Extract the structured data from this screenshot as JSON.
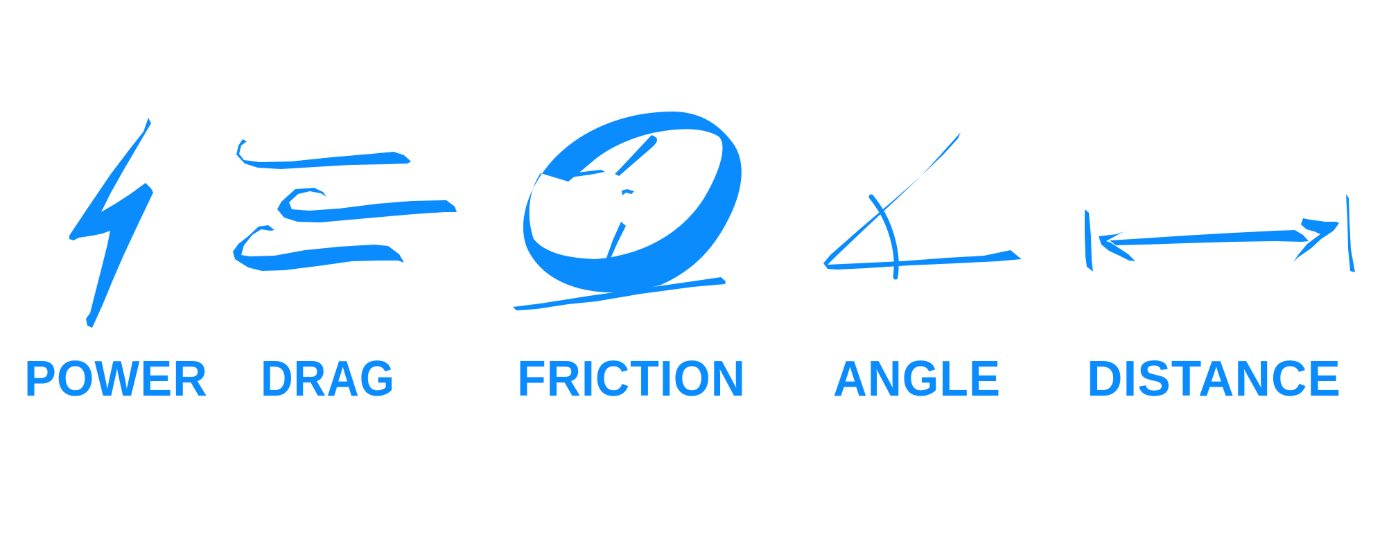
{
  "colors": {
    "accent": "#0a8cff",
    "background": "#ffffff"
  },
  "concepts": [
    {
      "label": "POWER",
      "icon": "lightning-bolt-icon"
    },
    {
      "label": "DRAG",
      "icon": "drag-lines-icon"
    },
    {
      "label": "FRICTION",
      "icon": "friction-wheel-icon"
    },
    {
      "label": "ANGLE",
      "icon": "angle-icon"
    },
    {
      "label": "DISTANCE",
      "icon": "distance-arrow-icon"
    }
  ]
}
